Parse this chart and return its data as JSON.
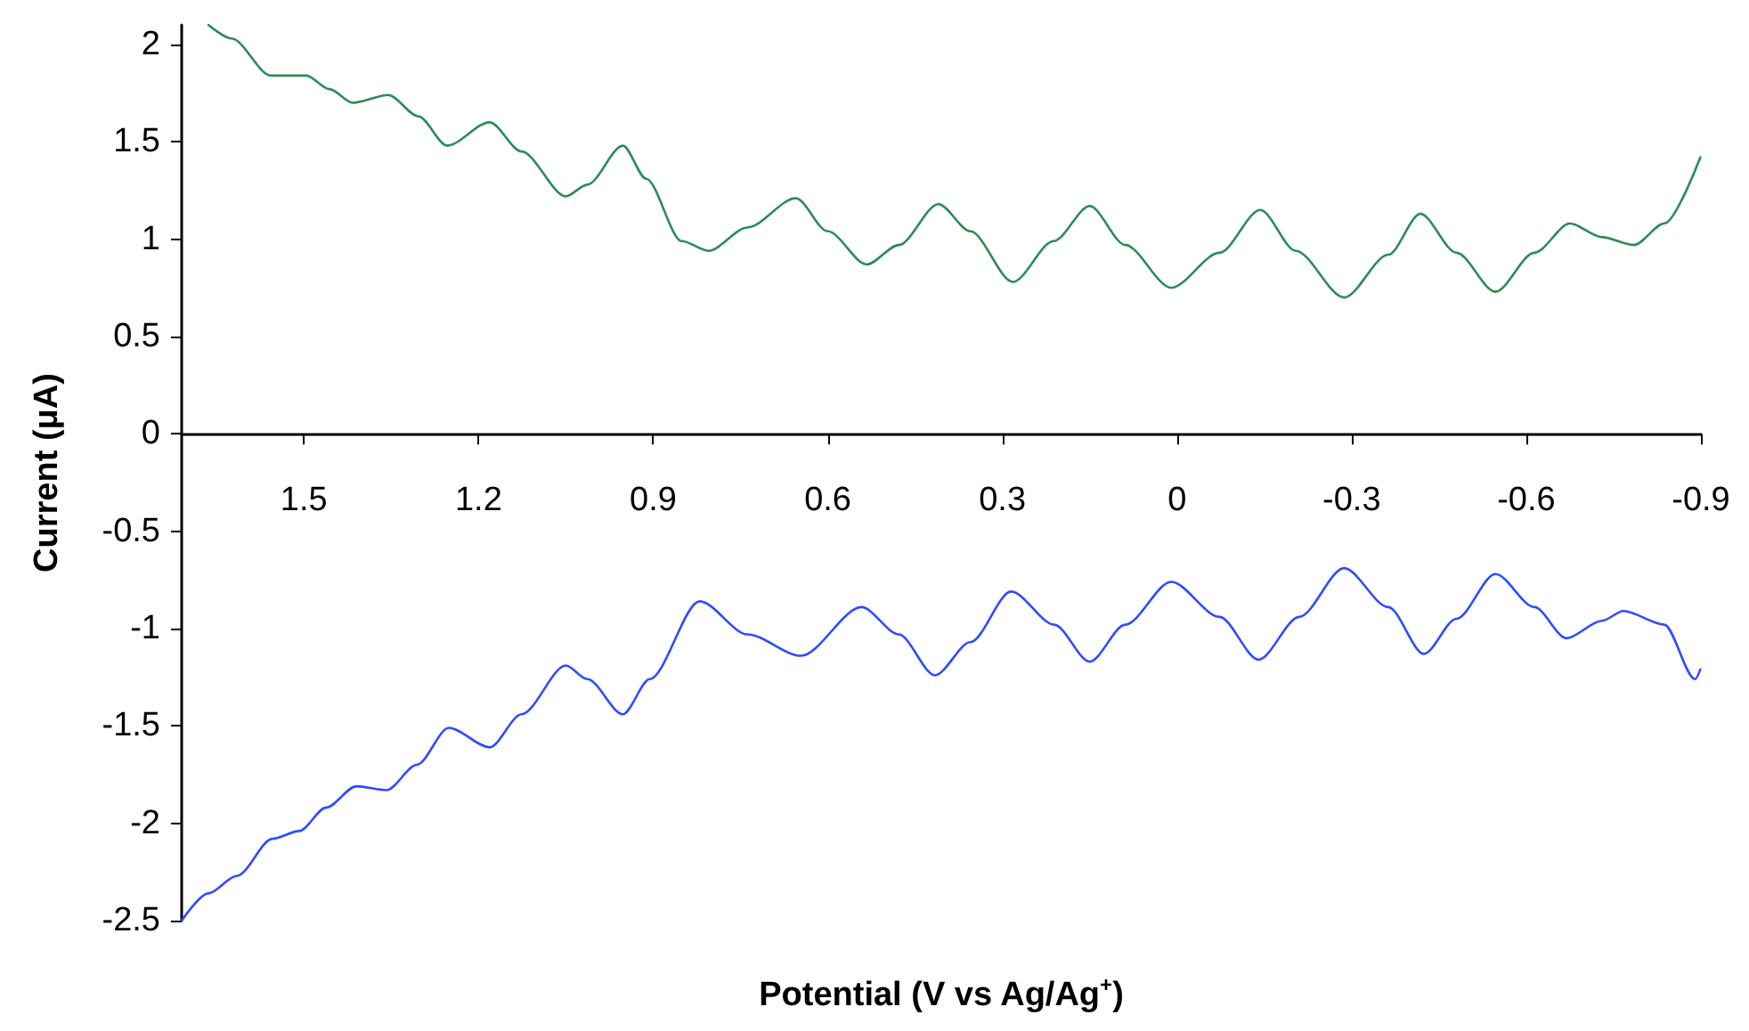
{
  "chart_data": {
    "type": "line",
    "xlabel": "Potential (V vs Ag/Ag$^{+}$)",
    "ylabel": "Current (μA)",
    "xlim": [
      1.71,
      -0.9
    ],
    "xticks": [
      1.5,
      1.2,
      0.9,
      0.6,
      0.3,
      0,
      -0.3,
      -0.6,
      -0.9
    ],
    "ylim": [
      -2.5,
      2.1
    ],
    "yticks": [
      -2.5,
      -2,
      -1.5,
      -1,
      -0.5,
      0,
      0.5,
      1,
      1.5,
      2
    ],
    "grid": false,
    "marker": "none",
    "line_style": "solid",
    "series": [
      {
        "color": "#2e8b57",
        "x": [
          1.664,
          1.624,
          1.557,
          1.496,
          1.456,
          1.416,
          1.355,
          1.303,
          1.254,
          1.181,
          1.126,
          1.05,
          1.013,
          0.952,
          0.912,
          0.851,
          0.805,
          0.738,
          0.655,
          0.6,
          0.533,
          0.478,
          0.41,
          0.355,
          0.282,
          0.212,
          0.15,
          0.089,
          0.01,
          -0.073,
          -0.143,
          -0.204,
          -0.287,
          -0.363,
          -0.418,
          -0.48,
          -0.547,
          -0.614,
          -0.675,
          -0.73,
          -0.785,
          -0.837,
          -0.899
        ],
        "values": [
          2.1,
          2.03,
          1.84,
          1.84,
          1.77,
          1.7,
          1.74,
          1.63,
          1.48,
          1.6,
          1.45,
          1.22,
          1.28,
          1.48,
          1.31,
          0.99,
          0.94,
          1.06,
          1.21,
          1.04,
          0.87,
          0.97,
          1.18,
          1.04,
          0.78,
          0.99,
          1.17,
          0.97,
          0.75,
          0.93,
          1.15,
          0.94,
          0.7,
          0.92,
          1.13,
          0.93,
          0.73,
          0.93,
          1.08,
          1.01,
          0.97,
          1.08,
          1.42
        ]
      },
      {
        "color": "#2f4bff",
        "x": [
          1.71,
          1.664,
          1.615,
          1.554,
          1.508,
          1.462,
          1.41,
          1.358,
          1.306,
          1.251,
          1.181,
          1.126,
          1.05,
          1.013,
          0.952,
          0.906,
          0.82,
          0.738,
          0.646,
          0.542,
          0.478,
          0.416,
          0.355,
          0.285,
          0.211,
          0.15,
          0.089,
          0.01,
          -0.073,
          -0.14,
          -0.21,
          -0.287,
          -0.363,
          -0.424,
          -0.48,
          -0.547,
          -0.614,
          -0.669,
          -0.73,
          -0.767,
          -0.837,
          -0.89,
          -0.899
        ],
        "values": [
          -2.5,
          -2.36,
          -2.27,
          -2.08,
          -2.04,
          -1.92,
          -1.81,
          -1.83,
          -1.7,
          -1.51,
          -1.61,
          -1.44,
          -1.19,
          -1.26,
          -1.44,
          -1.26,
          -0.86,
          -1.03,
          -1.14,
          -0.89,
          -1.03,
          -1.24,
          -1.07,
          -0.81,
          -0.98,
          -1.17,
          -0.98,
          -0.76,
          -0.94,
          -1.16,
          -0.94,
          -0.69,
          -0.89,
          -1.13,
          -0.95,
          -0.72,
          -0.89,
          -1.05,
          -0.96,
          -0.91,
          -0.98,
          -1.26,
          -1.21
        ]
      }
    ]
  }
}
